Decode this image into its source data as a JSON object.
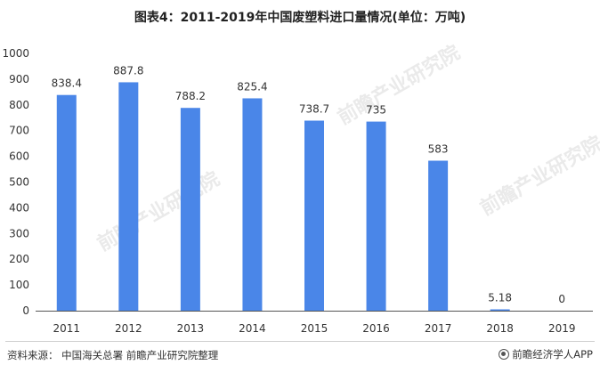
{
  "title": "图表4：2011-2019年中国废塑料进口量情况(单位：万吨)",
  "source": "资料来源：  中国海关总署 前瞻产业研究院整理",
  "brand": "前瞻经济学人APP",
  "watermark": "前瞻产业研究院",
  "colors": {
    "bar": "#4a86e8",
    "axis": "#555555"
  },
  "chart_data": {
    "type": "bar",
    "categories": [
      "2011",
      "2012",
      "2013",
      "2014",
      "2015",
      "2016",
      "2017",
      "2018",
      "2019"
    ],
    "values": [
      838.4,
      887.8,
      788.2,
      825.4,
      738.7,
      735,
      583,
      5.18,
      0
    ],
    "value_labels": [
      "838.4",
      "887.8",
      "788.2",
      "825.4",
      "738.7",
      "735",
      "583",
      "5.18",
      "0"
    ],
    "yticks": [
      "0",
      "100",
      "200",
      "300",
      "400",
      "500",
      "600",
      "700",
      "800",
      "900",
      "1000"
    ],
    "ylim": [
      0,
      1000
    ],
    "grid": false,
    "legend": "none"
  }
}
